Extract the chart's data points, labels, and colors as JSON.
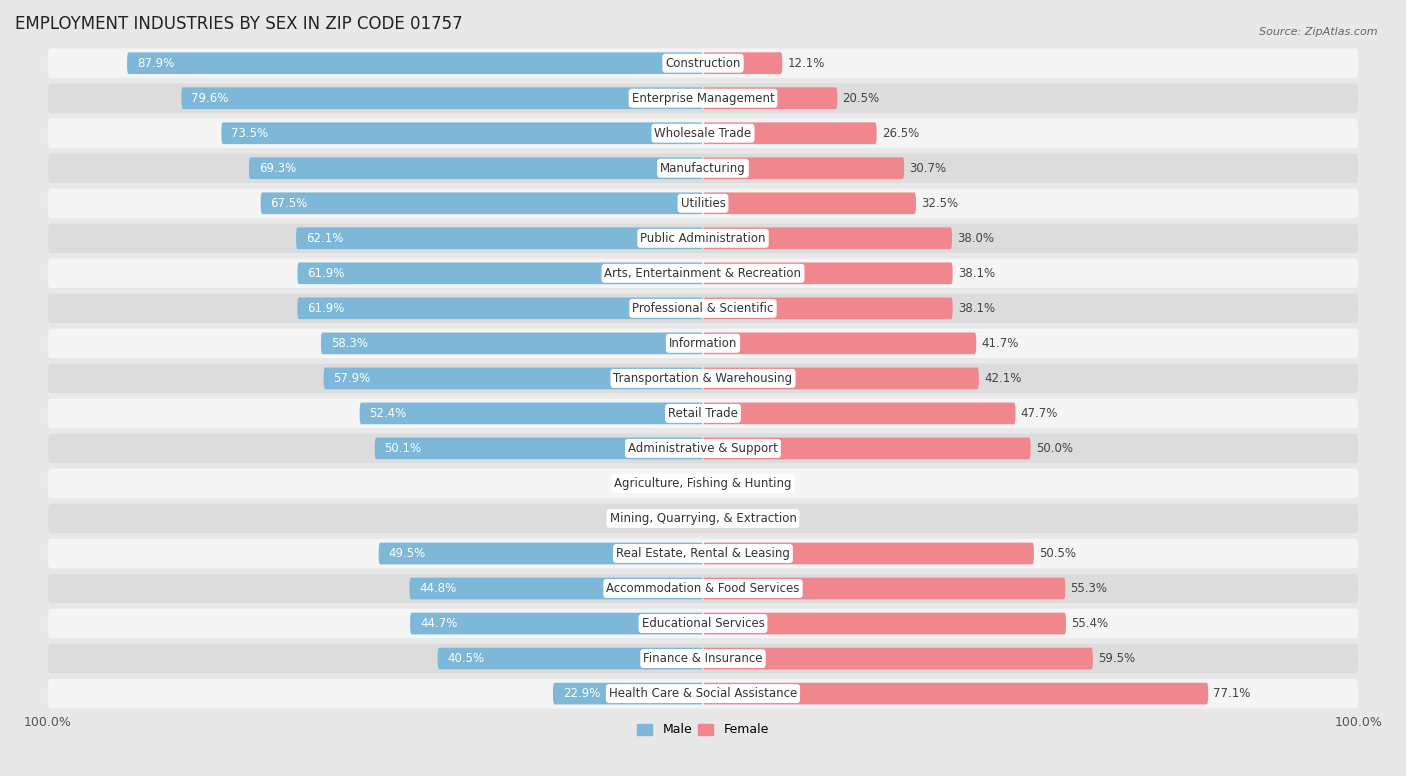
{
  "title": "EMPLOYMENT INDUSTRIES BY SEX IN ZIP CODE 01757",
  "source": "Source: ZipAtlas.com",
  "categories": [
    "Construction",
    "Enterprise Management",
    "Wholesale Trade",
    "Manufacturing",
    "Utilities",
    "Public Administration",
    "Arts, Entertainment & Recreation",
    "Professional & Scientific",
    "Information",
    "Transportation & Warehousing",
    "Retail Trade",
    "Administrative & Support",
    "Agriculture, Fishing & Hunting",
    "Mining, Quarrying, & Extraction",
    "Real Estate, Rental & Leasing",
    "Accommodation & Food Services",
    "Educational Services",
    "Finance & Insurance",
    "Health Care & Social Assistance"
  ],
  "male": [
    87.9,
    79.6,
    73.5,
    69.3,
    67.5,
    62.1,
    61.9,
    61.9,
    58.3,
    57.9,
    52.4,
    50.1,
    0.0,
    0.0,
    49.5,
    44.8,
    44.7,
    40.5,
    22.9
  ],
  "female": [
    12.1,
    20.5,
    26.5,
    30.7,
    32.5,
    38.0,
    38.1,
    38.1,
    41.7,
    42.1,
    47.7,
    50.0,
    0.0,
    0.0,
    50.5,
    55.3,
    55.4,
    59.5,
    77.1
  ],
  "male_color": "#7db8d8",
  "female_color": "#f0868e",
  "bg_color": "#e8e8e8",
  "row_bg_even": "#f5f5f5",
  "row_bg_odd": "#dcdcdc",
  "title_fontsize": 12,
  "value_fontsize": 8.5,
  "cat_fontsize": 8.5,
  "tick_fontsize": 9,
  "legend_fontsize": 9
}
